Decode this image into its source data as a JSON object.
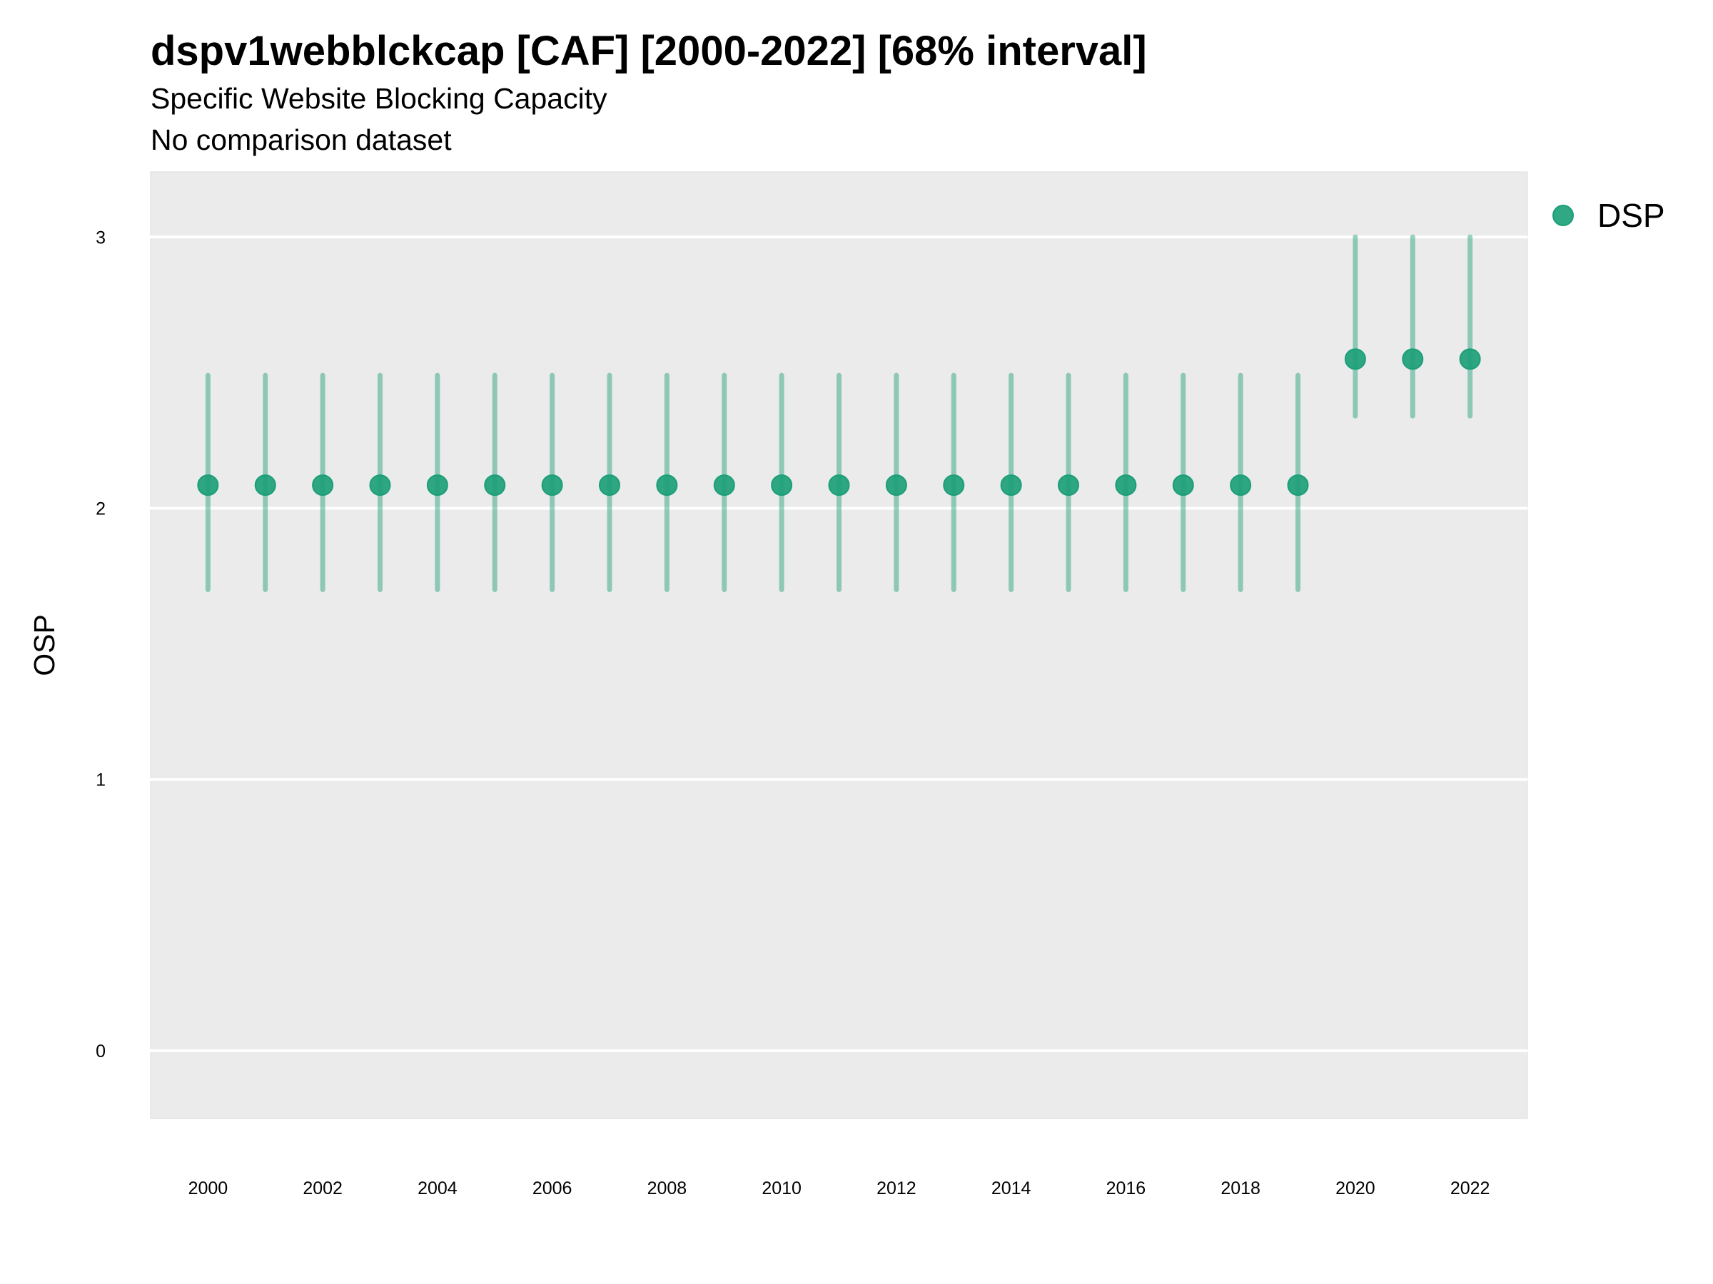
{
  "chart_data": {
    "type": "scatter",
    "title": "dspv1webblckcap [CAF] [2000-2022] [68% interval]",
    "subtitle": "Specific Website Blocking Capacity",
    "caption": "No comparison dataset",
    "xlabel": "",
    "ylabel": "OSP",
    "xlim": [
      1999,
      2023
    ],
    "ylim": [
      -0.25,
      3.24
    ],
    "yticks": [
      0,
      1,
      2,
      3
    ],
    "xticks": [
      2000,
      2002,
      2004,
      2006,
      2008,
      2010,
      2012,
      2014,
      2016,
      2018,
      2020,
      2022
    ],
    "grid": true,
    "legend_position": "top-right",
    "colors": {
      "point": "#1b9e77",
      "panel": "#ebebeb",
      "grid": "#ffffff"
    },
    "series": [
      {
        "name": "DSP",
        "x": [
          2000,
          2001,
          2002,
          2003,
          2004,
          2005,
          2006,
          2007,
          2008,
          2009,
          2010,
          2011,
          2012,
          2013,
          2014,
          2015,
          2016,
          2017,
          2018,
          2019,
          2020,
          2021,
          2022
        ],
        "y": [
          2.085,
          2.085,
          2.085,
          2.085,
          2.085,
          2.085,
          2.085,
          2.085,
          2.085,
          2.085,
          2.085,
          2.085,
          2.085,
          2.085,
          2.085,
          2.085,
          2.085,
          2.085,
          2.085,
          2.085,
          2.55,
          2.55,
          2.55
        ],
        "lower": [
          1.7,
          1.7,
          1.7,
          1.7,
          1.7,
          1.7,
          1.7,
          1.7,
          1.7,
          1.7,
          1.7,
          1.7,
          1.7,
          1.7,
          1.7,
          1.7,
          1.7,
          1.7,
          1.7,
          1.7,
          2.34,
          2.34,
          2.34
        ],
        "upper": [
          2.49,
          2.49,
          2.49,
          2.49,
          2.49,
          2.49,
          2.49,
          2.49,
          2.49,
          2.49,
          2.49,
          2.49,
          2.49,
          2.49,
          2.49,
          2.49,
          2.49,
          2.49,
          2.49,
          2.49,
          3.0,
          3.0,
          3.0
        ]
      }
    ]
  }
}
